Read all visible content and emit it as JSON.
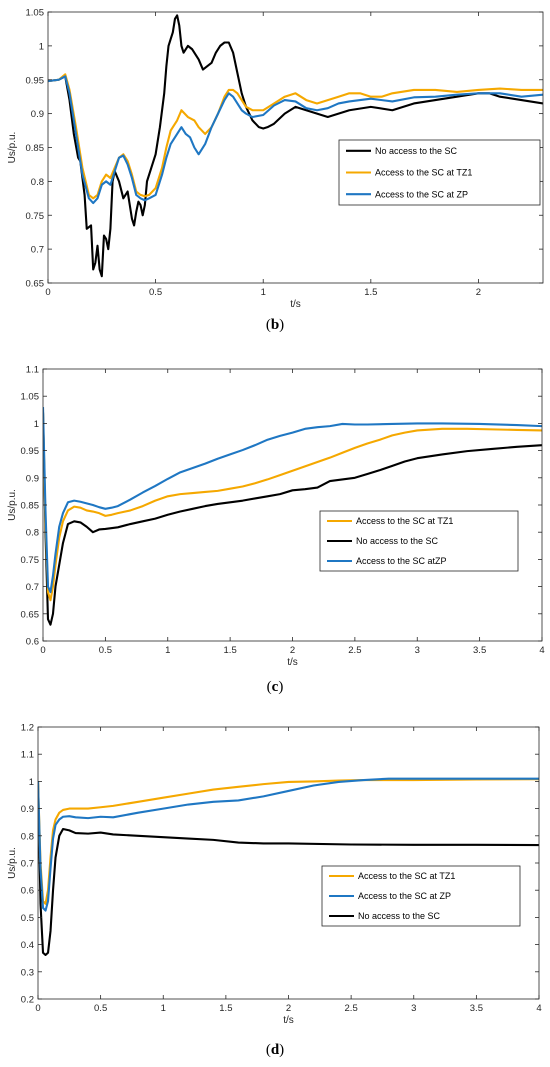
{
  "chart_data": [
    {
      "type": "line",
      "caption_open": "(",
      "caption_letter": "b",
      "caption_close": ")",
      "xlabel": "t/s",
      "ylabel": "Us/p.u.",
      "xlim": [
        0,
        2.3
      ],
      "ylim": [
        0.65,
        1.05
      ],
      "xticks": [
        0,
        0.5,
        1,
        1.5,
        2
      ],
      "xtick_labels": [
        "0",
        "0.5",
        "1",
        "1.5",
        "2"
      ],
      "yticks": [
        0.65,
        0.7,
        0.75,
        0.8,
        0.85,
        0.9,
        0.95,
        1,
        1.05
      ],
      "ytick_labels": [
        "0.65",
        "0.7",
        "0.75",
        "0.8",
        "0.85",
        "0.9",
        "0.95",
        "1",
        "1.05"
      ],
      "legend_position": "right",
      "legend_order": [
        0,
        1,
        2
      ],
      "series": [
        {
          "name": "No access to the SC",
          "color": "#000000",
          "x": [
            0,
            0.05,
            0.08,
            0.1,
            0.12,
            0.14,
            0.15,
            0.17,
            0.18,
            0.2,
            0.21,
            0.22,
            0.23,
            0.24,
            0.25,
            0.26,
            0.27,
            0.28,
            0.29,
            0.3,
            0.31,
            0.33,
            0.35,
            0.37,
            0.39,
            0.4,
            0.41,
            0.42,
            0.43,
            0.44,
            0.45,
            0.46,
            0.48,
            0.5,
            0.52,
            0.54,
            0.55,
            0.56,
            0.57,
            0.58,
            0.59,
            0.6,
            0.61,
            0.62,
            0.63,
            0.65,
            0.67,
            0.69,
            0.7,
            0.72,
            0.74,
            0.76,
            0.78,
            0.8,
            0.82,
            0.84,
            0.86,
            0.88,
            0.9,
            0.92,
            0.95,
            0.98,
            1.0,
            1.02,
            1.05,
            1.1,
            1.15,
            1.2,
            1.25,
            1.3,
            1.35,
            1.4,
            1.5,
            1.6,
            1.7,
            1.8,
            1.9,
            2.0,
            2.05,
            2.1,
            2.2,
            2.3
          ],
          "y": [
            0.948,
            0.95,
            0.955,
            0.92,
            0.87,
            0.835,
            0.83,
            0.78,
            0.73,
            0.735,
            0.67,
            0.68,
            0.705,
            0.67,
            0.66,
            0.72,
            0.715,
            0.7,
            0.73,
            0.8,
            0.815,
            0.8,
            0.775,
            0.785,
            0.745,
            0.735,
            0.755,
            0.77,
            0.765,
            0.75,
            0.765,
            0.8,
            0.82,
            0.84,
            0.88,
            0.93,
            0.97,
            1.0,
            1.01,
            1.02,
            1.04,
            1.045,
            1.03,
            1.0,
            0.99,
            1.0,
            0.995,
            0.985,
            0.98,
            0.965,
            0.97,
            0.975,
            0.99,
            1.0,
            1.005,
            1.005,
            0.99,
            0.96,
            0.93,
            0.91,
            0.89,
            0.88,
            0.878,
            0.88,
            0.885,
            0.9,
            0.91,
            0.905,
            0.9,
            0.895,
            0.9,
            0.905,
            0.91,
            0.905,
            0.915,
            0.92,
            0.925,
            0.93,
            0.93,
            0.925,
            0.92,
            0.915
          ]
        },
        {
          "name": "Access to the SC at TZ1",
          "color": "#F5A800",
          "x": [
            0,
            0.05,
            0.08,
            0.1,
            0.13,
            0.16,
            0.19,
            0.21,
            0.23,
            0.25,
            0.27,
            0.29,
            0.31,
            0.33,
            0.35,
            0.37,
            0.39,
            0.41,
            0.43,
            0.45,
            0.47,
            0.5,
            0.53,
            0.55,
            0.57,
            0.6,
            0.62,
            0.65,
            0.68,
            0.7,
            0.73,
            0.76,
            0.79,
            0.82,
            0.84,
            0.86,
            0.88,
            0.9,
            0.92,
            0.95,
            1.0,
            1.05,
            1.1,
            1.15,
            1.2,
            1.25,
            1.3,
            1.35,
            1.4,
            1.45,
            1.5,
            1.55,
            1.6,
            1.7,
            1.8,
            1.9,
            2.0,
            2.1,
            2.2,
            2.3
          ],
          "y": [
            0.948,
            0.95,
            0.958,
            0.935,
            0.88,
            0.82,
            0.78,
            0.775,
            0.78,
            0.8,
            0.81,
            0.805,
            0.82,
            0.835,
            0.84,
            0.83,
            0.81,
            0.785,
            0.78,
            0.778,
            0.78,
            0.79,
            0.82,
            0.85,
            0.875,
            0.89,
            0.905,
            0.895,
            0.89,
            0.88,
            0.87,
            0.88,
            0.9,
            0.925,
            0.935,
            0.935,
            0.93,
            0.92,
            0.91,
            0.905,
            0.905,
            0.915,
            0.925,
            0.93,
            0.92,
            0.915,
            0.92,
            0.925,
            0.93,
            0.93,
            0.925,
            0.925,
            0.93,
            0.935,
            0.935,
            0.932,
            0.935,
            0.937,
            0.935,
            0.935
          ]
        },
        {
          "name": "Access to the SC at ZP",
          "color": "#1F77C3",
          "x": [
            0,
            0.05,
            0.08,
            0.1,
            0.13,
            0.16,
            0.19,
            0.21,
            0.23,
            0.25,
            0.27,
            0.29,
            0.31,
            0.33,
            0.35,
            0.37,
            0.39,
            0.41,
            0.43,
            0.45,
            0.47,
            0.5,
            0.53,
            0.55,
            0.57,
            0.6,
            0.62,
            0.64,
            0.66,
            0.68,
            0.7,
            0.73,
            0.76,
            0.79,
            0.82,
            0.84,
            0.86,
            0.88,
            0.9,
            0.92,
            0.95,
            1.0,
            1.05,
            1.1,
            1.15,
            1.2,
            1.25,
            1.3,
            1.35,
            1.4,
            1.5,
            1.6,
            1.7,
            1.8,
            1.9,
            2.0,
            2.1,
            2.2,
            2.3
          ],
          "y": [
            0.948,
            0.95,
            0.955,
            0.93,
            0.87,
            0.81,
            0.775,
            0.768,
            0.775,
            0.795,
            0.8,
            0.795,
            0.815,
            0.835,
            0.838,
            0.825,
            0.805,
            0.78,
            0.775,
            0.772,
            0.775,
            0.78,
            0.81,
            0.835,
            0.855,
            0.87,
            0.88,
            0.87,
            0.865,
            0.85,
            0.84,
            0.855,
            0.88,
            0.9,
            0.92,
            0.93,
            0.925,
            0.915,
            0.905,
            0.9,
            0.895,
            0.898,
            0.912,
            0.92,
            0.918,
            0.908,
            0.905,
            0.908,
            0.915,
            0.918,
            0.922,
            0.918,
            0.924,
            0.925,
            0.928,
            0.93,
            0.93,
            0.925,
            0.928
          ]
        }
      ]
    },
    {
      "type": "line",
      "caption_open": "(",
      "caption_letter": "c",
      "caption_close": ")",
      "xlabel": "t/s",
      "ylabel": "Us/p.u.",
      "xlim": [
        0,
        4
      ],
      "ylim": [
        0.6,
        1.1
      ],
      "xticks": [
        0,
        0.5,
        1,
        1.5,
        2,
        2.5,
        3,
        3.5,
        4
      ],
      "xtick_labels": [
        "0",
        "0.5",
        "1",
        "1.5",
        "2",
        "2.5",
        "3",
        "3.5",
        "4"
      ],
      "yticks": [
        0.6,
        0.65,
        0.7,
        0.75,
        0.8,
        0.85,
        0.9,
        0.95,
        1,
        1.05,
        1.1
      ],
      "ytick_labels": [
        "0.6",
        "0.65",
        "0.7",
        "0.75",
        "0.8",
        "0.85",
        "0.9",
        "0.95",
        "1",
        "1.05",
        "1.1"
      ],
      "legend_position": "center-right",
      "legend_order": [
        1,
        0,
        2
      ],
      "series": [
        {
          "name": "No access to the SC",
          "color": "#000000",
          "x": [
            0,
            0.02,
            0.04,
            0.06,
            0.08,
            0.1,
            0.13,
            0.16,
            0.2,
            0.25,
            0.3,
            0.35,
            0.4,
            0.45,
            0.5,
            0.6,
            0.7,
            0.8,
            0.9,
            1.0,
            1.1,
            1.2,
            1.3,
            1.4,
            1.5,
            1.6,
            1.7,
            1.8,
            1.9,
            2.0,
            2.1,
            2.2,
            2.3,
            2.4,
            2.5,
            2.6,
            2.7,
            2.8,
            2.9,
            3.0,
            3.2,
            3.4,
            3.6,
            3.8,
            4.0
          ],
          "y": [
            1.02,
            0.8,
            0.64,
            0.63,
            0.65,
            0.7,
            0.74,
            0.78,
            0.815,
            0.82,
            0.818,
            0.81,
            0.8,
            0.805,
            0.806,
            0.809,
            0.815,
            0.82,
            0.825,
            0.832,
            0.838,
            0.843,
            0.848,
            0.852,
            0.855,
            0.858,
            0.862,
            0.866,
            0.87,
            0.877,
            0.879,
            0.882,
            0.894,
            0.897,
            0.9,
            0.907,
            0.914,
            0.922,
            0.93,
            0.936,
            0.943,
            0.949,
            0.953,
            0.957,
            0.96
          ]
        },
        {
          "name": "Access to the SC at TZ1",
          "color": "#F5A800",
          "x": [
            0,
            0.02,
            0.04,
            0.06,
            0.08,
            0.1,
            0.13,
            0.16,
            0.2,
            0.25,
            0.3,
            0.35,
            0.4,
            0.45,
            0.5,
            0.55,
            0.6,
            0.7,
            0.8,
            0.9,
            1.0,
            1.1,
            1.2,
            1.3,
            1.4,
            1.5,
            1.6,
            1.7,
            1.8,
            1.9,
            2.0,
            2.1,
            2.2,
            2.3,
            2.4,
            2.5,
            2.6,
            2.7,
            2.8,
            2.9,
            3.0,
            3.2,
            3.4,
            3.6,
            3.8,
            4.0
          ],
          "y": [
            1.02,
            0.82,
            0.69,
            0.675,
            0.7,
            0.74,
            0.79,
            0.82,
            0.84,
            0.847,
            0.845,
            0.84,
            0.838,
            0.835,
            0.83,
            0.832,
            0.835,
            0.84,
            0.848,
            0.858,
            0.866,
            0.87,
            0.872,
            0.874,
            0.876,
            0.88,
            0.884,
            0.89,
            0.897,
            0.905,
            0.913,
            0.921,
            0.929,
            0.937,
            0.946,
            0.955,
            0.963,
            0.97,
            0.978,
            0.983,
            0.987,
            0.99,
            0.99,
            0.989,
            0.988,
            0.987
          ]
        },
        {
          "name": "Access to the SC atZP",
          "color": "#1F77C3",
          "x": [
            0,
            0.02,
            0.04,
            0.06,
            0.08,
            0.1,
            0.13,
            0.16,
            0.2,
            0.25,
            0.3,
            0.35,
            0.4,
            0.45,
            0.5,
            0.55,
            0.6,
            0.7,
            0.8,
            0.9,
            1.0,
            1.1,
            1.2,
            1.3,
            1.4,
            1.5,
            1.6,
            1.7,
            1.8,
            1.9,
            2.0,
            2.1,
            2.2,
            2.3,
            2.4,
            2.5,
            2.6,
            2.8,
            3.0,
            3.2,
            3.5,
            3.8,
            4.0
          ],
          "y": [
            1.03,
            0.84,
            0.7,
            0.69,
            0.72,
            0.76,
            0.81,
            0.835,
            0.855,
            0.858,
            0.856,
            0.853,
            0.85,
            0.846,
            0.843,
            0.845,
            0.848,
            0.86,
            0.873,
            0.885,
            0.898,
            0.91,
            0.918,
            0.926,
            0.935,
            0.943,
            0.951,
            0.96,
            0.97,
            0.977,
            0.983,
            0.99,
            0.993,
            0.995,
            0.999,
            0.998,
            0.998,
            0.999,
            1.0,
            1.0,
            0.999,
            0.997,
            0.995
          ]
        }
      ]
    },
    {
      "type": "line",
      "caption_open": "(",
      "caption_letter": "d",
      "caption_close": ")",
      "xlabel": "t/s",
      "ylabel": "Us/p.u.",
      "xlim": [
        0,
        4
      ],
      "ylim": [
        0.2,
        1.2
      ],
      "xticks": [
        0,
        0.5,
        1,
        1.5,
        2,
        2.5,
        3,
        3.5,
        4
      ],
      "xtick_labels": [
        "0",
        "0.5",
        "1",
        "1.5",
        "2",
        "2.5",
        "3",
        "3.5",
        "4"
      ],
      "yticks": [
        0.2,
        0.3,
        0.4,
        0.5,
        0.6,
        0.7,
        0.8,
        0.9,
        1,
        1.1,
        1.2
      ],
      "ytick_labels": [
        "0.2",
        "0.3",
        "0.4",
        "0.5",
        "0.6",
        "0.7",
        "0.8",
        "0.9",
        "1",
        "1.1",
        "1.2"
      ],
      "legend_position": "center-right",
      "legend_order": [
        1,
        2,
        0
      ],
      "series": [
        {
          "name": "No access to the SC",
          "color": "#000000",
          "x": [
            0,
            0.02,
            0.04,
            0.06,
            0.08,
            0.1,
            0.12,
            0.14,
            0.17,
            0.2,
            0.25,
            0.3,
            0.4,
            0.5,
            0.6,
            0.8,
            1.0,
            1.2,
            1.4,
            1.6,
            1.8,
            2.0,
            2.5,
            3.0,
            3.5,
            4.0
          ],
          "y": [
            1.0,
            0.55,
            0.37,
            0.362,
            0.37,
            0.45,
            0.6,
            0.72,
            0.8,
            0.825,
            0.82,
            0.81,
            0.808,
            0.812,
            0.805,
            0.8,
            0.795,
            0.79,
            0.785,
            0.775,
            0.772,
            0.772,
            0.768,
            0.767,
            0.767,
            0.766
          ]
        },
        {
          "name": "Access to the SC at TZ1",
          "color": "#F5A800",
          "x": [
            0,
            0.02,
            0.04,
            0.06,
            0.08,
            0.1,
            0.12,
            0.14,
            0.17,
            0.2,
            0.25,
            0.3,
            0.4,
            0.5,
            0.6,
            0.8,
            1.0,
            1.2,
            1.4,
            1.6,
            1.8,
            2.0,
            2.2,
            2.4,
            2.6,
            3.0,
            3.5,
            4.0
          ],
          "y": [
            1.0,
            0.7,
            0.56,
            0.55,
            0.6,
            0.72,
            0.82,
            0.86,
            0.885,
            0.895,
            0.9,
            0.9,
            0.9,
            0.905,
            0.91,
            0.925,
            0.94,
            0.955,
            0.97,
            0.98,
            0.99,
            0.998,
            1.0,
            1.003,
            1.005,
            1.005,
            1.007,
            1.008
          ]
        },
        {
          "name": "Access to the SC at ZP",
          "color": "#1F77C3",
          "x": [
            0,
            0.02,
            0.04,
            0.06,
            0.08,
            0.1,
            0.12,
            0.14,
            0.17,
            0.2,
            0.25,
            0.3,
            0.4,
            0.5,
            0.6,
            0.8,
            1.0,
            1.2,
            1.4,
            1.6,
            1.8,
            2.0,
            2.2,
            2.4,
            2.6,
            2.8,
            3.0,
            3.5,
            4.0
          ],
          "y": [
            1.0,
            0.68,
            0.535,
            0.525,
            0.56,
            0.68,
            0.79,
            0.84,
            0.86,
            0.87,
            0.872,
            0.868,
            0.865,
            0.87,
            0.868,
            0.885,
            0.9,
            0.915,
            0.925,
            0.93,
            0.945,
            0.965,
            0.985,
            0.998,
            1.005,
            1.01,
            1.01,
            1.01,
            1.01
          ]
        }
      ]
    }
  ]
}
